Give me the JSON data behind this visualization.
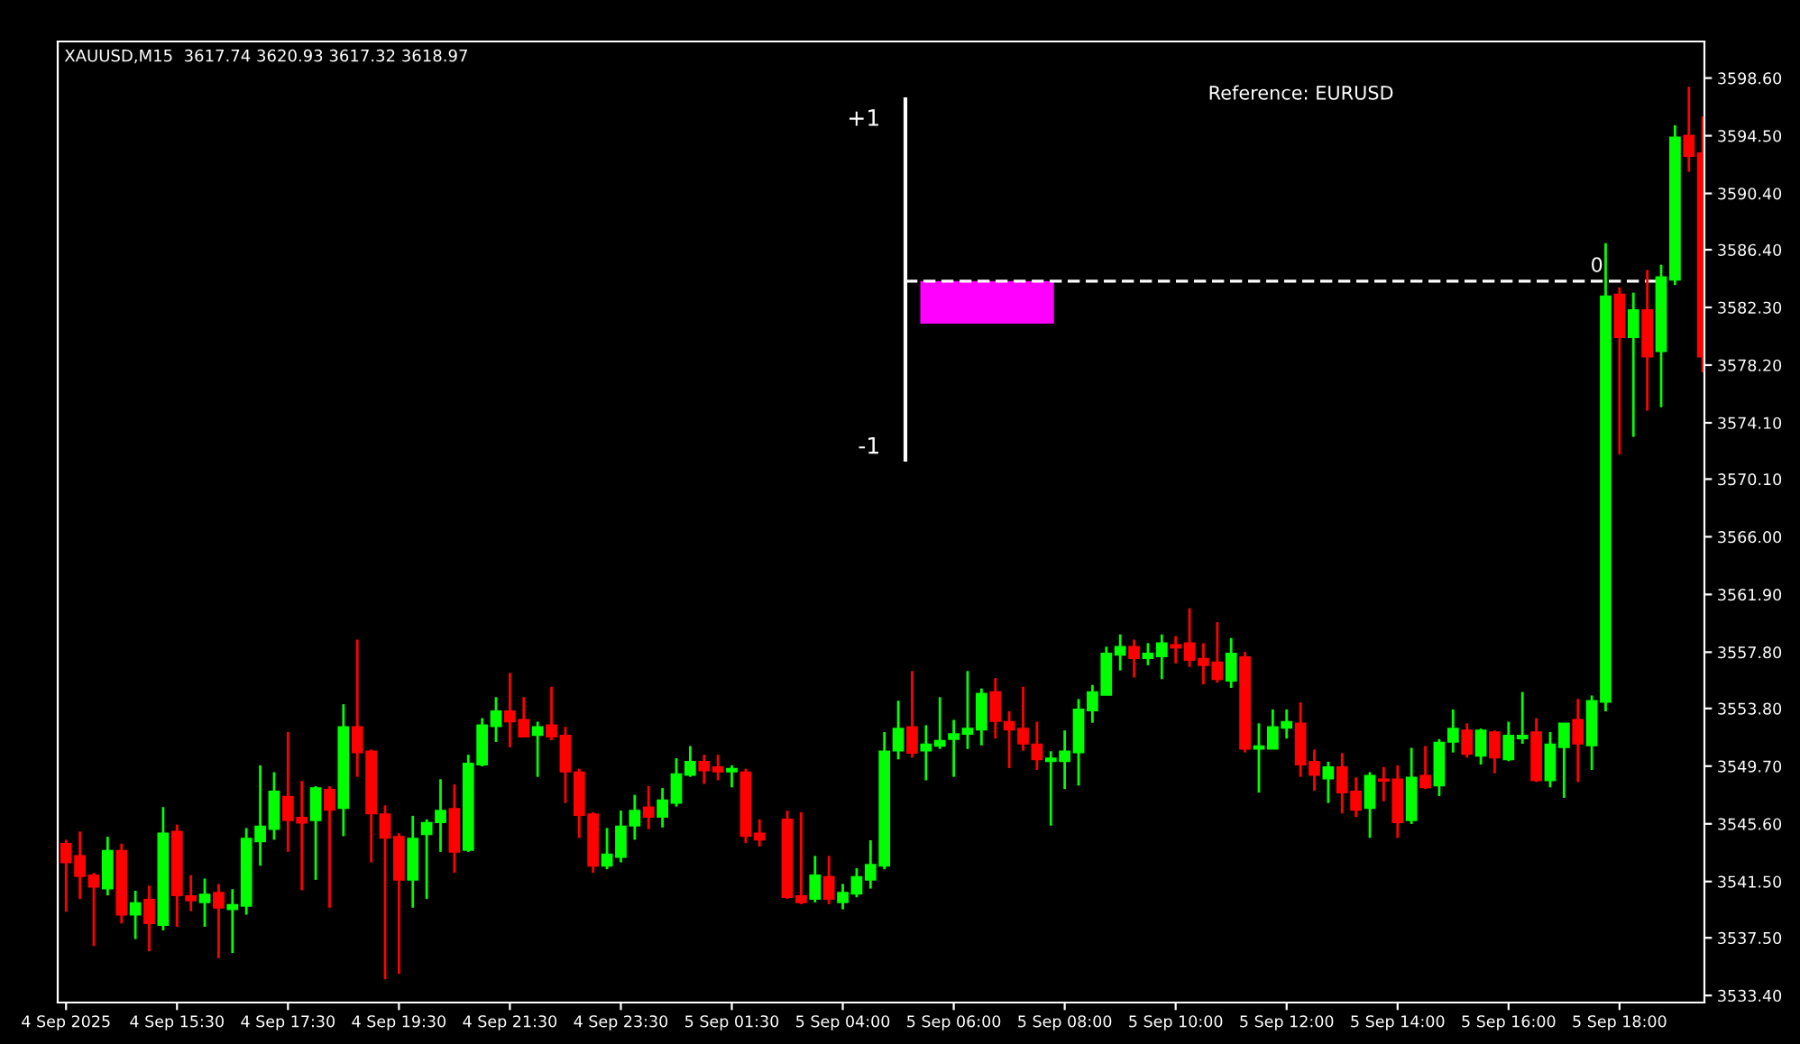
{
  "chart_data": [
    {
      "type": "candlestick",
      "title": "XAUUSD,M15  3617.74 3620.93 3617.32 3618.97",
      "categories": [
        "4 Sep 2025",
        null,
        null,
        null,
        null,
        null,
        null,
        null,
        "4 Sep 15:30",
        null,
        null,
        null,
        null,
        null,
        null,
        null,
        "4 Sep 17:30",
        null,
        null,
        null,
        null,
        null,
        null,
        null,
        "4 Sep 19:30",
        null,
        null,
        null,
        null,
        null,
        null,
        null,
        "4 Sep 21:30",
        null,
        null,
        null,
        null,
        null,
        null,
        null,
        "4 Sep 23:30",
        null,
        null,
        null,
        null,
        null,
        null,
        null,
        "5 Sep 01:30",
        null,
        null,
        null,
        null,
        null,
        null,
        null,
        "5 Sep 04:00",
        null,
        null,
        null,
        null,
        null,
        null,
        null,
        "5 Sep 06:00",
        null,
        null,
        null,
        null,
        null,
        null,
        null,
        "5 Sep 08:00",
        null,
        null,
        null,
        null,
        null,
        null,
        null,
        "5 Sep 10:00",
        null,
        null,
        null,
        null,
        null,
        null,
        null,
        "5 Sep 12:00",
        null,
        null,
        null,
        null,
        null,
        null,
        null,
        "5 Sep 14:00",
        null,
        null,
        null,
        null,
        null,
        null,
        null,
        "5 Sep 16:00",
        null,
        null,
        null,
        null,
        null,
        null,
        null,
        "5 Sep 18:00",
        null,
        null,
        null,
        null,
        null,
        null
      ],
      "ohlc": [
        [
          3544.19,
          3544.47,
          3539.35,
          3542.86
        ],
        [
          3543.32,
          3545.05,
          3540.26,
          3541.87
        ],
        [
          3541.95,
          3542.12,
          3536.91,
          3541.13
        ],
        [
          3541.0,
          3544.68,
          3540.51,
          3543.69
        ],
        [
          3543.69,
          3544.19,
          3538.52,
          3539.14
        ],
        [
          3539.14,
          3540.84,
          3537.41,
          3539.97
        ],
        [
          3540.22,
          3541.21,
          3536.54,
          3538.52
        ],
        [
          3538.4,
          3546.79,
          3538.03,
          3544.93
        ],
        [
          3545.05,
          3545.55,
          3538.28,
          3540.51
        ],
        [
          3540.47,
          3541.95,
          3539.39,
          3540.14
        ],
        [
          3540.01,
          3541.71,
          3538.28,
          3540.59
        ],
        [
          3540.71,
          3541.33,
          3536.05,
          3539.64
        ],
        [
          3539.52,
          3540.96,
          3536.42,
          3539.85
        ],
        [
          3539.76,
          3545.3,
          3539.14,
          3544.56
        ],
        [
          3544.35,
          3549.76,
          3542.62,
          3545.42
        ],
        [
          3545.22,
          3549.27,
          3544.47,
          3547.9
        ],
        [
          3547.53,
          3552.12,
          3543.61,
          3545.84
        ],
        [
          3546.05,
          3548.65,
          3540.88,
          3545.67
        ],
        [
          3545.84,
          3548.28,
          3541.62,
          3548.15
        ],
        [
          3548.03,
          3548.28,
          3539.64,
          3546.58
        ],
        [
          3546.71,
          3554.1,
          3544.72,
          3552.49
        ],
        [
          3552.49,
          3558.69,
          3548.94,
          3550.67
        ],
        [
          3550.76,
          3550.88,
          3542.86,
          3546.33
        ],
        [
          3546.29,
          3546.91,
          3534.56,
          3544.6
        ],
        [
          3544.68,
          3544.93,
          3534.93,
          3541.62
        ],
        [
          3541.62,
          3546.17,
          3539.64,
          3544.56
        ],
        [
          3544.85,
          3545.92,
          3540.26,
          3545.67
        ],
        [
          3545.71,
          3548.77,
          3543.61,
          3546.54
        ],
        [
          3546.67,
          3548.4,
          3542.12,
          3543.61
        ],
        [
          3543.73,
          3550.51,
          3543.61,
          3549.89
        ],
        [
          3549.81,
          3553.11,
          3549.68,
          3552.61
        ],
        [
          3552.53,
          3554.6,
          3551.42,
          3553.61
        ],
        [
          3553.61,
          3556.33,
          3551.04,
          3552.86
        ],
        [
          3552.99,
          3554.6,
          3551.79,
          3551.79
        ],
        [
          3551.91,
          3552.86,
          3548.94,
          3552.49
        ],
        [
          3552.61,
          3555.34,
          3551.54,
          3551.79
        ],
        [
          3551.87,
          3552.49,
          3547.08,
          3549.31
        ],
        [
          3549.27,
          3549.52,
          3544.6,
          3546.21
        ],
        [
          3546.29,
          3546.42,
          3542.12,
          3542.62
        ],
        [
          3542.62,
          3545.3,
          3542.37,
          3543.44
        ],
        [
          3543.24,
          3546.54,
          3542.86,
          3545.42
        ],
        [
          3545.47,
          3547.66,
          3544.47,
          3546.54
        ],
        [
          3546.79,
          3548.28,
          3545.22,
          3546.09
        ],
        [
          3546.09,
          3548.15,
          3545.34,
          3547.28
        ],
        [
          3547.08,
          3550.26,
          3546.83,
          3549.14
        ],
        [
          3549.06,
          3551.13,
          3548.94,
          3550.01
        ],
        [
          3550.01,
          3550.51,
          3548.44,
          3549.39
        ],
        [
          3549.64,
          3550.51,
          3548.69,
          3549.31
        ],
        [
          3549.31,
          3549.76,
          3548.19,
          3549.52
        ],
        [
          3549.27,
          3549.52,
          3544.23,
          3544.72
        ],
        [
          3544.93,
          3545.92,
          3543.98,
          3544.47
        ],
        null,
        [
          3545.92,
          3546.54,
          3540.26,
          3540.38
        ],
        [
          3540.47,
          3546.42,
          3539.89,
          3540.01
        ],
        [
          3540.26,
          3543.32,
          3540.01,
          3541.95
        ],
        [
          3541.83,
          3543.32,
          3539.89,
          3540.26
        ],
        [
          3540.01,
          3541.33,
          3539.52,
          3540.71
        ],
        [
          3540.63,
          3542.45,
          3540.38,
          3541.83
        ],
        [
          3541.62,
          3544.43,
          3541.0,
          3542.7
        ],
        [
          3542.62,
          3552.12,
          3542.37,
          3550.76
        ],
        [
          3550.8,
          3554.35,
          3550.18,
          3552.37
        ],
        [
          3552.49,
          3556.46,
          3550.3,
          3550.63
        ],
        [
          3550.8,
          3552.61,
          3548.69,
          3551.25
        ],
        [
          3551.13,
          3554.6,
          3550.92,
          3551.5
        ],
        [
          3551.62,
          3552.99,
          3548.94,
          3551.99
        ],
        [
          3551.99,
          3556.46,
          3550.92,
          3552.37
        ],
        [
          3552.28,
          3555.22,
          3551.17,
          3554.85
        ],
        [
          3554.97,
          3555.96,
          3551.66,
          3552.9
        ],
        [
          3552.86,
          3553.61,
          3549.56,
          3552.28
        ],
        [
          3552.37,
          3555.34,
          3550.8,
          3551.29
        ],
        [
          3551.25,
          3552.86,
          3549.43,
          3550.18
        ],
        [
          3550.05,
          3550.76,
          3545.47,
          3550.26
        ],
        [
          3550.05,
          3552.24,
          3548.07,
          3550.76
        ],
        [
          3550.67,
          3554.47,
          3548.32,
          3553.73
        ],
        [
          3553.65,
          3555.47,
          3552.78,
          3554.97
        ],
        [
          3554.76,
          3558.19,
          3554.76,
          3557.7
        ],
        [
          3557.61,
          3559.06,
          3556.5,
          3558.19
        ],
        [
          3558.19,
          3558.69,
          3556.0,
          3557.37
        ],
        [
          3557.37,
          3558.44,
          3556.87,
          3557.7
        ],
        [
          3557.49,
          3559.06,
          3555.88,
          3558.44
        ],
        [
          3558.32,
          3558.94,
          3557.0,
          3558.11
        ],
        [
          3558.44,
          3560.92,
          3556.75,
          3557.24
        ],
        [
          3557.33,
          3558.44,
          3555.51,
          3556.87
        ],
        [
          3557.08,
          3559.93,
          3555.63,
          3555.88
        ],
        [
          3555.76,
          3558.81,
          3555.26,
          3557.7
        ],
        [
          3557.45,
          3557.82,
          3550.67,
          3550.92
        ],
        [
          3550.92,
          3552.74,
          3547.82,
          3551.13
        ],
        [
          3550.92,
          3553.73,
          3550.92,
          3552.49
        ],
        [
          3552.41,
          3553.73,
          3551.66,
          3552.86
        ],
        [
          3552.74,
          3554.23,
          3548.94,
          3549.81
        ],
        [
          3550.01,
          3550.88,
          3547.95,
          3549.06
        ],
        [
          3548.81,
          3550.01,
          3547.08,
          3549.64
        ],
        [
          3549.64,
          3550.63,
          3546.34,
          3547.82
        ],
        [
          3547.9,
          3548.9,
          3546.09,
          3546.58
        ],
        [
          3546.71,
          3549.27,
          3544.6,
          3549.02
        ],
        [
          3548.77,
          3549.64,
          3547.2,
          3548.65
        ],
        [
          3548.77,
          3549.76,
          3544.6,
          3545.71
        ],
        [
          3545.84,
          3551.0,
          3545.59,
          3548.9
        ],
        [
          3549.02,
          3551.13,
          3548.07,
          3548.19
        ],
        [
          3548.32,
          3551.62,
          3547.57,
          3551.38
        ],
        [
          3551.42,
          3553.73,
          3550.67,
          3552.37
        ],
        [
          3552.24,
          3552.74,
          3550.3,
          3550.55
        ],
        [
          3550.43,
          3552.37,
          3549.81,
          3552.24
        ],
        [
          3552.12,
          3552.24,
          3549.19,
          3550.3
        ],
        [
          3550.18,
          3552.86,
          3550.05,
          3551.87
        ],
        [
          3551.66,
          3554.97,
          3551.29,
          3551.87
        ],
        [
          3552.12,
          3553.11,
          3548.57,
          3548.69
        ],
        [
          3548.69,
          3552.12,
          3548.19,
          3551.25
        ],
        [
          3551.04,
          3552.74,
          3547.45,
          3552.74
        ],
        [
          3552.99,
          3554.47,
          3548.57,
          3551.29
        ],
        [
          3551.17,
          3554.72,
          3549.43,
          3554.35
        ],
        [
          3554.26,
          3586.86,
          3553.6,
          3583.1
        ],
        [
          3583.23,
          3583.72,
          3571.86,
          3580.17
        ],
        [
          3580.17,
          3583.35,
          3573.1,
          3582.11
        ],
        [
          3582.11,
          3584.96,
          3574.96,
          3578.8
        ],
        [
          3579.18,
          3585.33,
          3575.21,
          3584.46
        ],
        [
          3584.26,
          3595.25,
          3583.89,
          3594.38
        ],
        [
          3594.51,
          3597.98,
          3591.94,
          3593.06
        ],
        [
          3593.27,
          3595.87,
          3577.69,
          3578.8
        ]
      ],
      "colors": [
        "#ff0000",
        "#ff0000",
        "#ff0000",
        "#00ff00",
        "#ff0000",
        "#00ff00",
        "#ff0000",
        "#00ff00",
        "#ff0000",
        "#ff0000",
        "#00ff00",
        "#ff0000",
        "#00ff00",
        "#00ff00",
        "#00ff00",
        "#00ff00",
        "#ff0000",
        "#ff0000",
        "#00ff00",
        "#ff0000",
        "#00ff00",
        "#ff0000",
        "#ff0000",
        "#ff0000",
        "#ff0000",
        "#00ff00",
        "#00ff00",
        "#00ff00",
        "#ff0000",
        "#00ff00",
        "#00ff00",
        "#00ff00",
        "#ff0000",
        "#ff0000",
        "#00ff00",
        "#ff0000",
        "#ff0000",
        "#ff0000",
        "#ff0000",
        "#00ff00",
        "#00ff00",
        "#00ff00",
        "#ff0000",
        "#00ff00",
        "#00ff00",
        "#00ff00",
        "#ff0000",
        "#ff0000",
        "#00ff00",
        "#ff0000",
        "#ff0000",
        null,
        "#ff0000",
        "#ff0000",
        "#00ff00",
        "#ff0000",
        "#00ff00",
        "#00ff00",
        "#00ff00",
        "#00ff00",
        "#00ff00",
        "#ff0000",
        "#00ff00",
        "#00ff00",
        "#00ff00",
        "#00ff00",
        "#00ff00",
        "#ff0000",
        "#ff0000",
        "#ff0000",
        "#ff0000",
        "#00ff00",
        "#00ff00",
        "#00ff00",
        "#00ff00",
        "#00ff00",
        "#00ff00",
        "#ff0000",
        "#00ff00",
        "#00ff00",
        "#ff0000",
        "#ff0000",
        "#ff0000",
        "#ff0000",
        "#00ff00",
        "#ff0000",
        "#00ff00",
        "#00ff00",
        "#00ff00",
        "#ff0000",
        "#ff0000",
        "#00ff00",
        "#ff0000",
        "#ff0000",
        "#00ff00",
        "#ff0000",
        "#ff0000",
        "#00ff00",
        "#ff0000",
        "#00ff00",
        "#00ff00",
        "#ff0000",
        "#00ff00",
        "#ff0000",
        "#00ff00",
        "#00ff00",
        "#ff0000",
        "#00ff00",
        "#00ff00",
        "#ff0000",
        "#00ff00",
        "#00ff00",
        "#ff0000",
        "#00ff00",
        "#ff0000",
        "#00ff00",
        "#00ff00",
        "#ff0000",
        "#ff0000"
      ],
      "annotations": [
        "Reference: EURUSD"
      ],
      "ylim": [
        3532.9,
        3601.2
      ],
      "yticks": [
        {
          "value": 3533.4,
          "label": "3533.40"
        },
        {
          "value": 3537.5,
          "label": "3537.50"
        },
        {
          "value": 3541.5,
          "label": "3541.50"
        },
        {
          "value": 3545.6,
          "label": "3545.60"
        },
        {
          "value": 3549.7,
          "label": "3549.70"
        },
        {
          "value": 3553.8,
          "label": "3553.80"
        },
        {
          "value": 3557.8,
          "label": "3557.80"
        },
        {
          "value": 3561.9,
          "label": "3561.90"
        },
        {
          "value": 3566.0,
          "label": "3566.00"
        },
        {
          "value": 3570.1,
          "label": "3570.10"
        },
        {
          "value": 3574.1,
          "label": "3574.10"
        },
        {
          "value": 3578.2,
          "label": "3578.20"
        },
        {
          "value": 3582.3,
          "label": "3582.30"
        },
        {
          "value": 3586.4,
          "label": "3586.40"
        },
        {
          "value": 3590.4,
          "label": "3590.40"
        },
        {
          "value": 3594.5,
          "label": "3594.50"
        },
        {
          "value": 3598.6,
          "label": "3598.60"
        }
      ],
      "grid": false
    },
    {
      "type": "bar",
      "categories": [
        null
      ],
      "values": [
        -0.26
      ],
      "color": "#ff00ff",
      "ylim": [
        -1.09,
        1.11
      ],
      "yticks": [
        {
          "value": 1,
          "label": "+1"
        },
        {
          "value": -1,
          "label": "-1"
        }
      ],
      "ref_lines": [
        {
          "axis": "y",
          "value": 0,
          "label": "0",
          "color": "#ffffff",
          "line_style": "dashed"
        }
      ],
      "tick_labels": "y",
      "grid": false
    }
  ]
}
